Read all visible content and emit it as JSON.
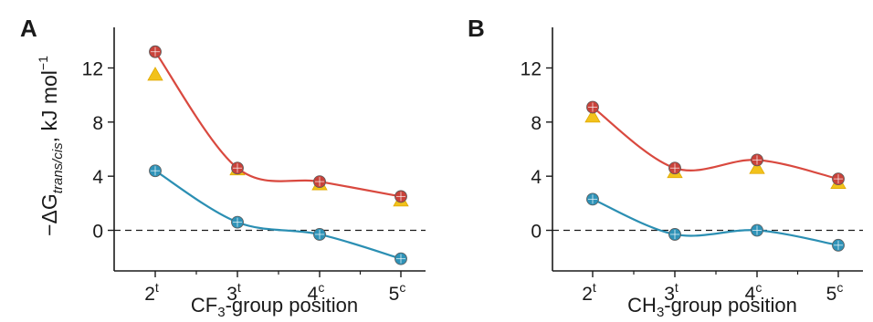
{
  "figure": {
    "ylabel_pre": "−ΔG",
    "ylabel_sub": "trans/cis",
    "ylabel_post": ", kJ mol",
    "ylabel_sup": "−1"
  },
  "colors": {
    "red_line": "#d9493f",
    "red_marker": "#c9423a",
    "yellow_marker": "#f2c21b",
    "blue_line": "#2b8fb3",
    "blue_marker": "#2f93b8",
    "axis": "#1a1a1a"
  },
  "chart_data": [
    {
      "panel_label": "A",
      "type": "scatter",
      "xlabel_pre": "CF",
      "xlabel_sub": "3",
      "xlabel_post": "-group position",
      "categories": [
        {
          "base": "2",
          "sup": "t"
        },
        {
          "base": "3",
          "sup": "t"
        },
        {
          "base": "4",
          "sup": "c"
        },
        {
          "base": "5",
          "sup": "c"
        }
      ],
      "yticks": [
        "0",
        "4",
        "8",
        "12"
      ],
      "ylim": [
        -3,
        15
      ],
      "reference_line": 0,
      "series": [
        {
          "id": "red",
          "marker": "circle",
          "values": [
            13.2,
            4.6,
            3.6,
            2.5
          ],
          "smooth_line": true
        },
        {
          "id": "yellow",
          "marker": "triangle",
          "values": [
            11.5,
            4.5,
            3.4,
            2.2
          ],
          "smooth_line": false
        },
        {
          "id": "blue",
          "marker": "circle",
          "values": [
            4.4,
            0.6,
            -0.3,
            -2.1
          ],
          "smooth_line": true
        }
      ]
    },
    {
      "panel_label": "B",
      "type": "scatter",
      "xlabel_pre": "CH",
      "xlabel_sub": "3",
      "xlabel_post": "-group position",
      "categories": [
        {
          "base": "2",
          "sup": "t"
        },
        {
          "base": "3",
          "sup": "t"
        },
        {
          "base": "4",
          "sup": "c"
        },
        {
          "base": "5",
          "sup": "c"
        }
      ],
      "yticks": [
        "0",
        "4",
        "8",
        "12"
      ],
      "ylim": [
        -3,
        15
      ],
      "reference_line": 0,
      "series": [
        {
          "id": "red",
          "marker": "circle",
          "values": [
            9.1,
            4.6,
            5.2,
            3.8
          ],
          "smooth_line": true
        },
        {
          "id": "yellow",
          "marker": "triangle",
          "values": [
            8.4,
            4.3,
            4.6,
            3.5
          ],
          "smooth_line": false
        },
        {
          "id": "blue",
          "marker": "circle",
          "values": [
            2.3,
            -0.3,
            0.0,
            -1.1
          ],
          "smooth_line": true
        }
      ]
    }
  ]
}
